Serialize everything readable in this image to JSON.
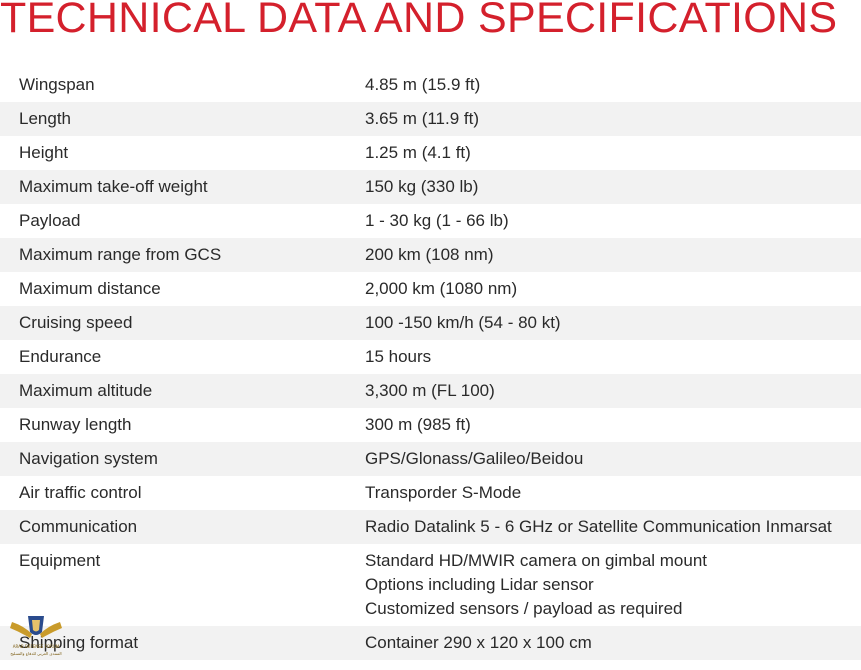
{
  "title": "TECHNICAL DATA AND SPECIFICATIONS",
  "specs": [
    {
      "label": "Wingspan",
      "value": [
        "4.85 m (15.9 ft)"
      ]
    },
    {
      "label": "Length",
      "value": [
        "3.65 m (11.9 ft)"
      ]
    },
    {
      "label": "Height",
      "value": [
        "1.25 m (4.1 ft)"
      ]
    },
    {
      "label": "Maximum take-off weight",
      "value": [
        "150 kg (330 lb)"
      ]
    },
    {
      "label": "Payload",
      "value": [
        "1 - 30 kg (1 - 66 lb)"
      ]
    },
    {
      "label": "Maximum range from GCS",
      "value": [
        "200 km (108 nm)"
      ]
    },
    {
      "label": "Maximum distance",
      "value": [
        "2,000 km (1080 nm)"
      ]
    },
    {
      "label": "Cruising speed",
      "value": [
        "100 -150 km/h (54 - 80 kt)"
      ]
    },
    {
      "label": "Endurance",
      "value": [
        "15 hours"
      ]
    },
    {
      "label": "Maximum altitude",
      "value": [
        "3,300 m (FL 100)"
      ]
    },
    {
      "label": "Runway length",
      "value": [
        "300 m (985 ft)"
      ]
    },
    {
      "label": "Navigation system",
      "value": [
        "GPS/Glonass/Galileo/Beidou"
      ]
    },
    {
      "label": "Air traffic control",
      "value": [
        "Transporder S-Mode"
      ]
    },
    {
      "label": "Communication",
      "value": [
        "Radio Datalink 5 - 6 GHz or Satellite Communication Inmarsat"
      ]
    },
    {
      "label": "Equipment",
      "value": [
        "Standard HD/MWIR camera on gimbal mount",
        "Options including Lidar sensor",
        "Customized sensors / payload as required"
      ]
    },
    {
      "label": "Shipping format",
      "value": [
        "Container 290 x 120 x 100 cm"
      ]
    }
  ],
  "watermark": {
    "line1": "ARAB DEFENSE FORUM",
    "line2": "المنتدى العربي للدفاع والتسليح"
  },
  "colors": {
    "title": "#d4202c",
    "row_shade": "#f2f2f2",
    "text": "#2a2a2a"
  }
}
